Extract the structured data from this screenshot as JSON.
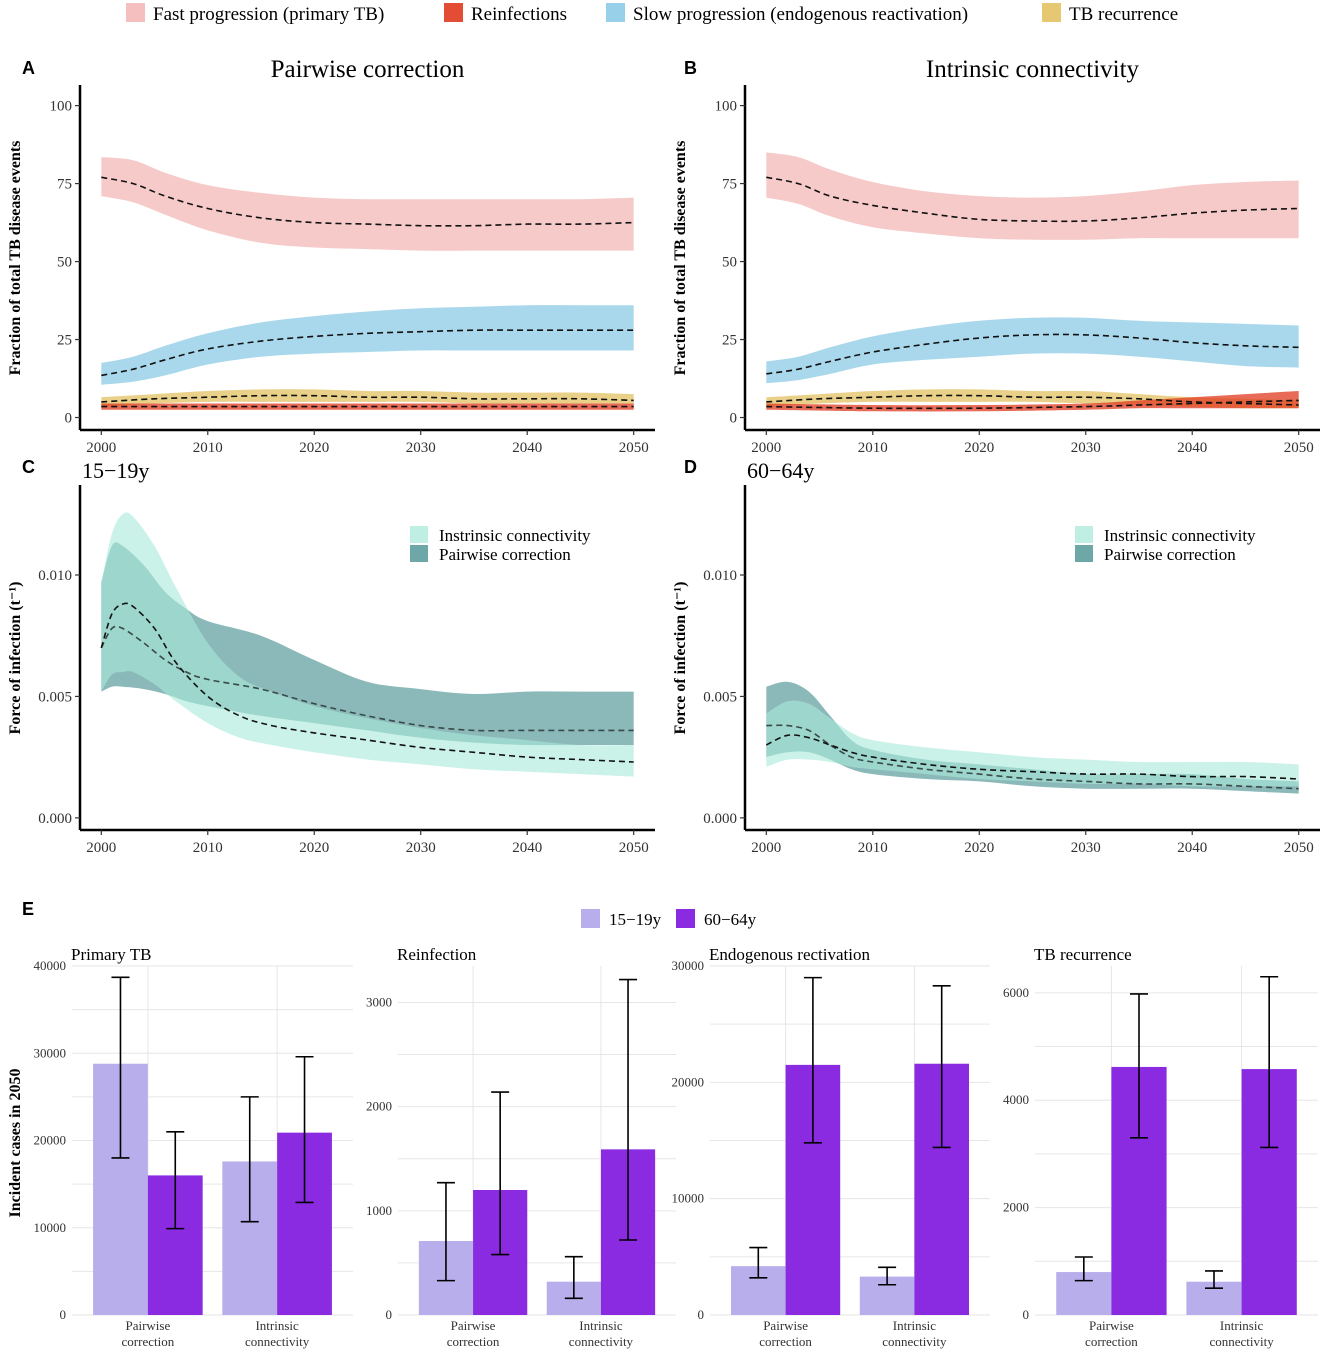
{
  "top_legend": [
    {
      "label": "Fast progression (primary TB)",
      "color": "#f4b8b8"
    },
    {
      "label": "Reinfections",
      "color": "#e03a20"
    },
    {
      "label": "Slow progression (endogenous reactivation)",
      "color": "#8ccbe6"
    },
    {
      "label": "TB recurrence",
      "color": "#e2c262"
    }
  ],
  "colors": {
    "fast": "#f4b8b8",
    "reinf": "#e03a20",
    "slow": "#8ccbe6",
    "recur": "#e2c262",
    "intrinsic": "#a8ead8",
    "pairwise": "#3d8a8a",
    "age1519": "#b8aeec",
    "age6064": "#8a2be2"
  },
  "chart_data": [
    {
      "panel": "A",
      "type": "area",
      "title": "Pairwise correction",
      "ylabel": "Fraction of total TB disease events",
      "xlabel": "",
      "xlim": [
        1998,
        2052
      ],
      "ylim": [
        -4,
        105
      ],
      "xticks": [
        2000,
        2010,
        2020,
        2030,
        2040,
        2050
      ],
      "yticks": [
        0,
        25,
        50,
        75,
        100
      ],
      "series": [
        {
          "name": "Fast progression (primary TB)",
          "key": "fast",
          "x": [
            2000,
            2003,
            2006,
            2010,
            2015,
            2020,
            2025,
            2030,
            2035,
            2040,
            2045,
            2050
          ],
          "mid": [
            77,
            75,
            71,
            67,
            64,
            62.5,
            62,
            61.5,
            61.5,
            62,
            62,
            62.5
          ],
          "lo": [
            71,
            69,
            65,
            60,
            56,
            54.5,
            54,
            53.5,
            53.5,
            53.5,
            53.5,
            53.5
          ],
          "hi": [
            83.5,
            82.5,
            78.5,
            74.5,
            72,
            70.5,
            70,
            70,
            70,
            70,
            70,
            70.5
          ]
        },
        {
          "name": "Slow progression (endogenous reactivation)",
          "key": "slow",
          "x": [
            2000,
            2003,
            2006,
            2010,
            2015,
            2020,
            2025,
            2030,
            2035,
            2040,
            2045,
            2050
          ],
          "mid": [
            13.5,
            15.5,
            18.5,
            22,
            24.5,
            26,
            27,
            27.5,
            28,
            28,
            28,
            28
          ],
          "lo": [
            10.5,
            11.5,
            13.5,
            17,
            19.5,
            20.5,
            21,
            21.5,
            21.5,
            21.5,
            21.5,
            21.5
          ],
          "hi": [
            17.5,
            19.5,
            23,
            27,
            30.5,
            32.5,
            34,
            35,
            35.5,
            36,
            36,
            36
          ]
        },
        {
          "name": "TB recurrence",
          "key": "recur",
          "x": [
            2000,
            2005,
            2010,
            2015,
            2020,
            2025,
            2030,
            2035,
            2040,
            2045,
            2050
          ],
          "mid": [
            5,
            6,
            6.5,
            7,
            7,
            6.5,
            6.5,
            6,
            6,
            6,
            5.5
          ],
          "lo": [
            3.5,
            4.5,
            5,
            5,
            5,
            5,
            5,
            4.5,
            4.5,
            4.5,
            4.5
          ],
          "hi": [
            6.5,
            7.5,
            8.5,
            9,
            9,
            8.5,
            8.5,
            8,
            8,
            8,
            7.5
          ]
        },
        {
          "name": "Reinfections",
          "key": "reinf",
          "x": [
            2000,
            2010,
            2020,
            2030,
            2040,
            2050
          ],
          "mid": [
            3.5,
            3.5,
            3.5,
            3.5,
            3.5,
            3.5
          ],
          "lo": [
            2.5,
            2.5,
            2.5,
            2.5,
            2.5,
            2.5
          ],
          "hi": [
            4.5,
            4.5,
            4.5,
            4.5,
            4.5,
            4.5
          ]
        }
      ]
    },
    {
      "panel": "B",
      "type": "area",
      "title": "Intrinsic connectivity",
      "ylabel": "Fraction of total TB disease events",
      "xlabel": "",
      "xlim": [
        1998,
        2052
      ],
      "ylim": [
        -4,
        105
      ],
      "xticks": [
        2000,
        2010,
        2020,
        2030,
        2040,
        2050
      ],
      "yticks": [
        0,
        25,
        50,
        75,
        100
      ],
      "series": [
        {
          "name": "Fast progression (primary TB)",
          "key": "fast",
          "x": [
            2000,
            2003,
            2006,
            2010,
            2015,
            2020,
            2025,
            2030,
            2035,
            2040,
            2045,
            2050
          ],
          "mid": [
            77,
            75,
            71,
            68,
            65.5,
            63.5,
            63,
            63,
            64,
            65.5,
            66.5,
            67
          ],
          "lo": [
            70.5,
            68.5,
            64.5,
            61,
            59,
            57.5,
            57,
            57,
            57.5,
            57.5,
            57.5,
            57.5
          ],
          "hi": [
            85,
            83.5,
            79.5,
            75.5,
            72.5,
            71,
            70.5,
            71,
            72.5,
            74.5,
            75.5,
            76
          ]
        },
        {
          "name": "Slow progression (endogenous reactivation)",
          "key": "slow",
          "x": [
            2000,
            2003,
            2006,
            2010,
            2015,
            2020,
            2025,
            2030,
            2035,
            2040,
            2045,
            2050
          ],
          "mid": [
            14,
            15.5,
            18,
            21,
            23.5,
            25.5,
            26.5,
            26.5,
            25.5,
            24,
            23,
            22.5
          ],
          "lo": [
            11,
            12,
            14,
            17,
            18.5,
            19.5,
            20.5,
            20.5,
            19.5,
            18,
            16.5,
            16
          ],
          "hi": [
            18,
            19.5,
            22.5,
            26,
            29,
            31,
            32,
            32,
            31,
            30.5,
            30,
            29.5
          ]
        },
        {
          "name": "TB recurrence",
          "key": "recur",
          "x": [
            2000,
            2005,
            2010,
            2015,
            2020,
            2025,
            2030,
            2035,
            2040,
            2045,
            2050
          ],
          "mid": [
            5,
            6,
            6.5,
            7,
            7,
            6.5,
            6.5,
            6,
            5,
            4.5,
            4
          ],
          "lo": [
            3.5,
            4.5,
            5,
            5,
            5,
            5,
            4.5,
            4,
            3.5,
            3,
            3
          ],
          "hi": [
            6.5,
            7.5,
            8.5,
            9,
            9,
            8.5,
            8.5,
            7.5,
            6.5,
            6,
            5.5
          ]
        },
        {
          "name": "Reinfections",
          "key": "reinf",
          "x": [
            2000,
            2010,
            2020,
            2030,
            2035,
            2040,
            2045,
            2050
          ],
          "mid": [
            3.5,
            3,
            3,
            3.5,
            4,
            4.5,
            5,
            5.5
          ],
          "lo": [
            2.5,
            2,
            2,
            2.5,
            3,
            3,
            3,
            3
          ],
          "hi": [
            4.5,
            4,
            4,
            4.5,
            5.5,
            6.5,
            7.5,
            8.5
          ]
        }
      ]
    },
    {
      "panel": "C",
      "type": "area",
      "title": "15−19y",
      "ylabel": "Force of infection (t⁻¹)",
      "xlabel": "",
      "xlim": [
        1998,
        2052
      ],
      "ylim": [
        -0.0005,
        0.0135
      ],
      "xticks": [
        2000,
        2010,
        2020,
        2030,
        2040,
        2050
      ],
      "yticks": [
        0,
        0.005,
        0.01
      ],
      "ytick_labels": [
        "0.000",
        "0.005",
        "0.010"
      ],
      "legend": [
        "Instrinsic connectivity",
        "Pairwise correction"
      ],
      "series": [
        {
          "name": "Pairwise correction",
          "key": "pairwise",
          "x": [
            2000,
            2001,
            2002,
            2004,
            2006,
            2008,
            2010,
            2015,
            2020,
            2025,
            2030,
            2035,
            2040,
            2045,
            2050
          ],
          "mid": [
            0.007,
            0.0078,
            0.0078,
            0.0072,
            0.0065,
            0.006,
            0.0057,
            0.0053,
            0.0047,
            0.0042,
            0.0038,
            0.0036,
            0.0036,
            0.0036,
            0.0036
          ],
          "lo": [
            0.0052,
            0.0054,
            0.0054,
            0.0053,
            0.0051,
            0.0048,
            0.0046,
            0.0042,
            0.0039,
            0.0036,
            0.0033,
            0.0031,
            0.003,
            0.003,
            0.003
          ],
          "hi": [
            0.0097,
            0.0112,
            0.0112,
            0.0104,
            0.0093,
            0.0086,
            0.0081,
            0.0075,
            0.0065,
            0.0056,
            0.0053,
            0.0051,
            0.0052,
            0.0052,
            0.0052
          ]
        },
        {
          "name": "Instrinsic connectivity",
          "key": "intrinsic",
          "x": [
            2000,
            2001,
            2002,
            2003,
            2005,
            2007,
            2010,
            2013,
            2016,
            2020,
            2025,
            2030,
            2035,
            2040,
            2045,
            2050
          ],
          "mid": [
            0.007,
            0.0084,
            0.0088,
            0.0087,
            0.0078,
            0.0064,
            0.005,
            0.0042,
            0.0038,
            0.0035,
            0.0032,
            0.0029,
            0.0027,
            0.0025,
            0.0024,
            0.0023
          ],
          "lo": [
            0.0052,
            0.0059,
            0.006,
            0.006,
            0.0055,
            0.0048,
            0.0039,
            0.0033,
            0.003,
            0.0027,
            0.0024,
            0.0022,
            0.002,
            0.0019,
            0.0018,
            0.0017
          ],
          "hi": [
            0.0097,
            0.0117,
            0.0125,
            0.0124,
            0.0112,
            0.0095,
            0.0072,
            0.0058,
            0.0052,
            0.0046,
            0.0041,
            0.0037,
            0.0034,
            0.0032,
            0.003,
            0.003
          ]
        }
      ]
    },
    {
      "panel": "D",
      "type": "area",
      "title": "60−64y",
      "ylabel": "Force of infection (t⁻¹)",
      "xlabel": "",
      "xlim": [
        1998,
        2052
      ],
      "ylim": [
        -0.0005,
        0.0135
      ],
      "xticks": [
        2000,
        2010,
        2020,
        2030,
        2040,
        2050
      ],
      "yticks": [
        0,
        0.005,
        0.01
      ],
      "ytick_labels": [
        "0.000",
        "0.005",
        "0.010"
      ],
      "legend": [
        "Instrinsic connectivity",
        "Pairwise correction"
      ],
      "series": [
        {
          "name": "Pairwise correction",
          "key": "pairwise",
          "x": [
            2000,
            2002,
            2004,
            2006,
            2008,
            2010,
            2015,
            2020,
            2025,
            2030,
            2035,
            2040,
            2045,
            2050
          ],
          "mid": [
            0.0038,
            0.0038,
            0.0036,
            0.003,
            0.0025,
            0.0023,
            0.002,
            0.0018,
            0.0016,
            0.0015,
            0.0014,
            0.0014,
            0.0013,
            0.0012
          ],
          "lo": [
            0.0025,
            0.0027,
            0.0027,
            0.0024,
            0.002,
            0.0018,
            0.0016,
            0.0015,
            0.0013,
            0.0012,
            0.0012,
            0.0012,
            0.0011,
            0.001
          ],
          "hi": [
            0.0054,
            0.0056,
            0.0052,
            0.0042,
            0.0032,
            0.0028,
            0.0024,
            0.0022,
            0.002,
            0.0018,
            0.0018,
            0.0018,
            0.0016,
            0.0015
          ]
        },
        {
          "name": "Instrinsic connectivity",
          "key": "intrinsic",
          "x": [
            2000,
            2002,
            2004,
            2006,
            2008,
            2010,
            2015,
            2020,
            2025,
            2030,
            2035,
            2040,
            2045,
            2050
          ],
          "mid": [
            0.003,
            0.0034,
            0.0033,
            0.003,
            0.0027,
            0.0025,
            0.0022,
            0.002,
            0.0019,
            0.0018,
            0.0018,
            0.0017,
            0.0017,
            0.0016
          ],
          "lo": [
            0.0021,
            0.0024,
            0.0024,
            0.0023,
            0.0021,
            0.002,
            0.0018,
            0.0016,
            0.0015,
            0.0014,
            0.0014,
            0.0013,
            0.0013,
            0.0013
          ],
          "hi": [
            0.0043,
            0.0048,
            0.0047,
            0.0041,
            0.0035,
            0.0032,
            0.0029,
            0.0027,
            0.0025,
            0.0024,
            0.0023,
            0.0023,
            0.0023,
            0.0022
          ]
        }
      ]
    },
    {
      "panel": "E",
      "type": "bar",
      "ylabel": "Incident cases in 2050",
      "legend": [
        "15−19y",
        "60−64y"
      ],
      "categories": [
        "Pairwise correction",
        "Intrinsic connectivity"
      ],
      "category_lines": [
        [
          "Pairwise",
          "correction"
        ],
        [
          "Intrinsic",
          "connectivity"
        ]
      ],
      "facets": [
        {
          "title": "Primary TB",
          "ylim": [
            0,
            40000
          ],
          "yticks": [
            0,
            10000,
            20000,
            30000,
            40000
          ],
          "series": [
            {
              "name": "15−19y",
              "values": [
                28800,
                17600
              ],
              "err_lo": [
                18000,
                10700
              ],
              "err_hi": [
                38700,
                25000
              ]
            },
            {
              "name": "60−64y",
              "values": [
                16000,
                20900
              ],
              "err_lo": [
                9900,
                12900
              ],
              "err_hi": [
                21000,
                29600
              ]
            }
          ]
        },
        {
          "title": "Reinfection",
          "ylim": [
            0,
            3350
          ],
          "yticks": [
            0,
            1000,
            2000,
            3000
          ],
          "series": [
            {
              "name": "15−19y",
              "values": [
                710,
                320
              ],
              "err_lo": [
                330,
                160
              ],
              "err_hi": [
                1270,
                560
              ]
            },
            {
              "name": "60−64y",
              "values": [
                1200,
                1590
              ],
              "err_lo": [
                580,
                720
              ],
              "err_hi": [
                2140,
                3220
              ]
            }
          ]
        },
        {
          "title": "Endogenous rectivation",
          "ylim": [
            0,
            30000
          ],
          "yticks": [
            0,
            10000,
            20000,
            30000
          ],
          "series": [
            {
              "name": "15−19y",
              "values": [
                4200,
                3300
              ],
              "err_lo": [
                3200,
                2600
              ],
              "err_hi": [
                5800,
                4100
              ]
            },
            {
              "name": "60−64y",
              "values": [
                21500,
                21600
              ],
              "err_lo": [
                14800,
                14400
              ],
              "err_hi": [
                29000,
                28300
              ]
            }
          ]
        },
        {
          "title": "TB recurrence",
          "ylim": [
            0,
            6500
          ],
          "yticks": [
            0,
            2000,
            4000,
            6000
          ],
          "series": [
            {
              "name": "15−19y",
              "values": [
                800,
                620
              ],
              "err_lo": [
                640,
                500
              ],
              "err_hi": [
                1080,
                820
              ]
            },
            {
              "name": "60−64y",
              "values": [
                4620,
                4580
              ],
              "err_lo": [
                3300,
                3120
              ],
              "err_hi": [
                5980,
                6300
              ]
            }
          ]
        }
      ]
    }
  ]
}
